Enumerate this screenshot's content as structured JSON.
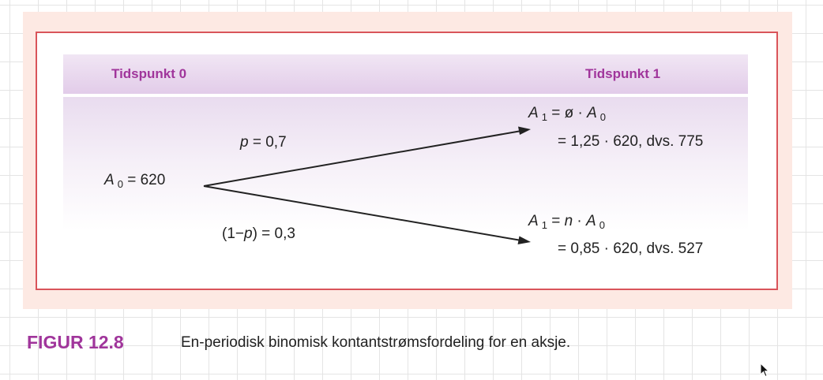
{
  "diagram": {
    "header": {
      "left": "Tidspunkt 0",
      "right": "Tidspunkt 1"
    },
    "root": {
      "symbol": "A",
      "subscript": "0",
      "value_text": " = 620"
    },
    "branch_up": {
      "prob_var": "p",
      "prob_text": "  = 0,7",
      "line1_symbol": "A",
      "line1_sub": "1",
      "line1_mid": " = ø · ",
      "line1_symbol2": "A",
      "line1_sub2": "0",
      "line2": "= 1,25 · 620, dvs. 775"
    },
    "branch_down": {
      "prob_pre": "(1−",
      "prob_var": "p",
      "prob_post": ") = 0,3",
      "line1_symbol": "A",
      "line1_sub": "1",
      "line1_mid": " = ",
      "line1_var": "n",
      "line1_mid2": " · ",
      "line1_symbol2": "A",
      "line1_sub2": "0",
      "line2": "= 0,85 · 620, dvs. 527"
    }
  },
  "caption": {
    "figure_label": "FIGUR 12.8",
    "text": "En-periodisk binomisk kontantstrømsfordeling for en aksje."
  },
  "colors": {
    "accent": "#a0359b",
    "frame": "#d9545a",
    "panel": "#fde9e3"
  },
  "icons": {
    "cursor": "mouse-pointer-icon"
  }
}
